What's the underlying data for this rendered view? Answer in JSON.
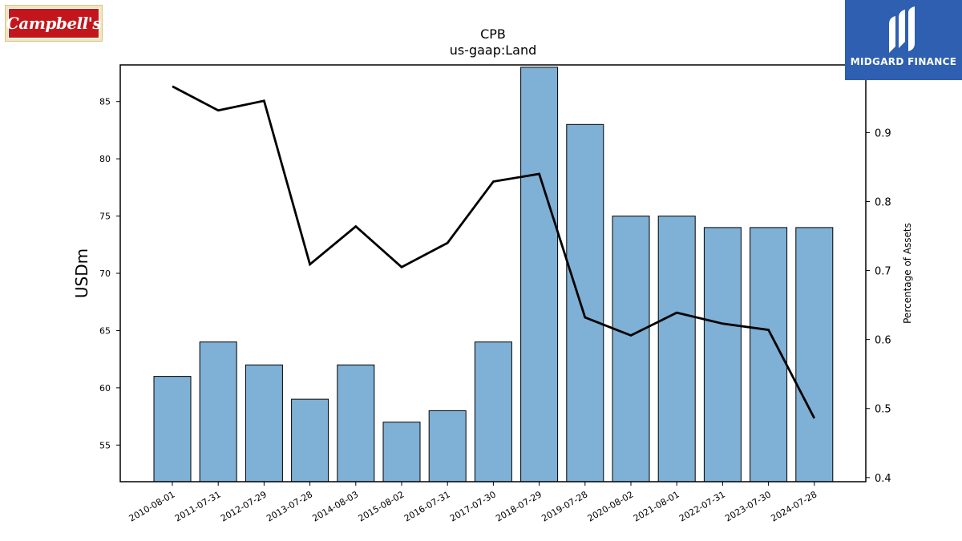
{
  "branding": {
    "left_logo_text": "Campbell's",
    "right_logo_text": "MIDGARD FINANCE",
    "left_logo_colors": {
      "background": "#c3161c",
      "frame": "#f3e6bf"
    },
    "right_logo_color": "#2e5fb0"
  },
  "chart_data": {
    "type": "bar",
    "title": "CPB",
    "subtitle": "us-gaap:Land",
    "ylabel": "USDm",
    "y2label": "Percentage of Assets",
    "categories": [
      "2010-08-01",
      "2011-07-31",
      "2012-07-29",
      "2013-07-28",
      "2014-08-03",
      "2015-08-02",
      "2016-07-31",
      "2017-07-30",
      "2018-07-29",
      "2019-07-28",
      "2020-08-02",
      "2021-08-01",
      "2022-07-31",
      "2023-07-30",
      "2024-07-28"
    ],
    "series": [
      {
        "type": "bar",
        "axis": "left",
        "color": "#7fb0d5",
        "values": [
          61,
          64,
          62,
          59,
          62,
          57,
          58,
          64,
          88,
          83,
          75,
          75,
          74,
          74,
          74
        ]
      },
      {
        "type": "line",
        "axis": "right",
        "color": "#000000",
        "values": [
          0.967,
          0.932,
          0.946,
          0.709,
          0.764,
          0.705,
          0.74,
          0.829,
          0.84,
          0.632,
          0.606,
          0.639,
          0.623,
          0.614,
          0.486
        ]
      }
    ],
    "ylim": [
      51.8,
      88.2
    ],
    "y2lim": [
      0.394,
      0.998
    ],
    "yticks": [
      55,
      60,
      65,
      70,
      75,
      80,
      85
    ],
    "y2ticks": [
      0.4,
      0.5,
      0.6,
      0.7,
      0.8,
      0.9
    ],
    "grid": false
  }
}
